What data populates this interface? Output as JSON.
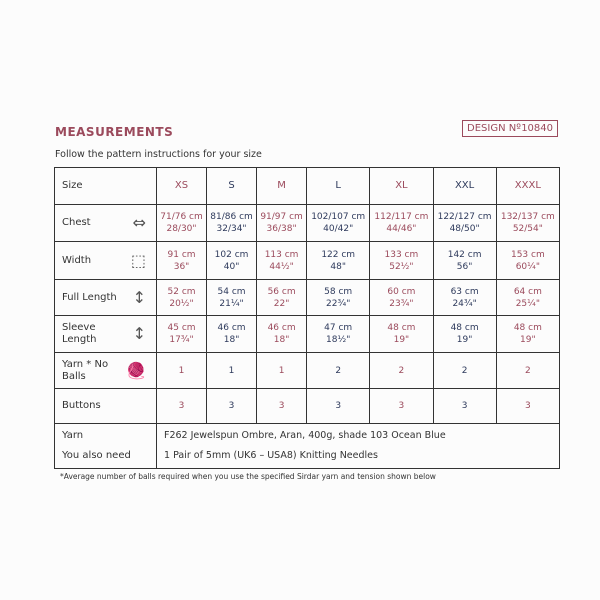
{
  "title": "MEASUREMENTS",
  "design": {
    "label": "DESIGN Nº",
    "number": "10840"
  },
  "instructions": "Follow the pattern instructions for your size",
  "colors": {
    "accent": "#9b4a5c",
    "text": "#2e3a5c"
  },
  "sizes": {
    "label": "Size",
    "values": [
      "XS",
      "S",
      "M",
      "L",
      "XL",
      "XXL",
      "XXXL"
    ]
  },
  "rows": [
    {
      "label": "Chest",
      "icon": "cardigan-chest-icon",
      "values": [
        [
          "71/76 cm",
          "28/30\""
        ],
        [
          "81/86 cm",
          "32/34\""
        ],
        [
          "91/97 cm",
          "36/38\""
        ],
        [
          "102/107 cm",
          "40/42\""
        ],
        [
          "112/117 cm",
          "44/46\""
        ],
        [
          "122/127 cm",
          "48/50\""
        ],
        [
          "132/137 cm",
          "52/54\""
        ]
      ]
    },
    {
      "label": "Width",
      "icon": "cardigan-width-icon",
      "values": [
        [
          "91 cm",
          "36\""
        ],
        [
          "102 cm",
          "40\""
        ],
        [
          "113 cm",
          "44½\""
        ],
        [
          "122 cm",
          "48\""
        ],
        [
          "133 cm",
          "52½\""
        ],
        [
          "142 cm",
          "56\""
        ],
        [
          "153 cm",
          "60¼\""
        ]
      ]
    },
    {
      "label": "Full Length",
      "icon": "cardigan-length-icon",
      "values": [
        [
          "52 cm",
          "20½\""
        ],
        [
          "54 cm",
          "21¼\""
        ],
        [
          "56 cm",
          "22\""
        ],
        [
          "58 cm",
          "22¾\""
        ],
        [
          "60 cm",
          "23¾\""
        ],
        [
          "63 cm",
          "24¾\""
        ],
        [
          "64 cm",
          "25¼\""
        ]
      ]
    },
    {
      "label": "Sleeve Length",
      "icon": "sleeve-length-icon",
      "values": [
        [
          "45 cm",
          "17¾\""
        ],
        [
          "46 cm",
          "18\""
        ],
        [
          "46 cm",
          "18\""
        ],
        [
          "47 cm",
          "18½\""
        ],
        [
          "48 cm",
          "19\""
        ],
        [
          "48 cm",
          "19\""
        ],
        [
          "48 cm",
          "19\""
        ]
      ]
    },
    {
      "label": "Yarn * No Balls",
      "icon": "yarn-ball-icon",
      "values": [
        [
          "1"
        ],
        [
          "1"
        ],
        [
          "1"
        ],
        [
          "2"
        ],
        [
          "2"
        ],
        [
          "2"
        ],
        [
          "2"
        ]
      ]
    },
    {
      "label": "Buttons",
      "icon": "",
      "values": [
        [
          "3"
        ],
        [
          "3"
        ],
        [
          "3"
        ],
        [
          "3"
        ],
        [
          "3"
        ],
        [
          "3"
        ],
        [
          "3"
        ]
      ]
    }
  ],
  "yarn": {
    "label": "Yarn",
    "value": "F262 Jewelspun Ombre, Aran, 400g, shade 103 Ocean Blue"
  },
  "also_need": {
    "label": "You also need",
    "value": "1 Pair of 5mm (UK6 – USA8) Knitting Needles"
  },
  "footnote": "*Average number of balls required when you use the specified Sirdar yarn and tension shown below"
}
